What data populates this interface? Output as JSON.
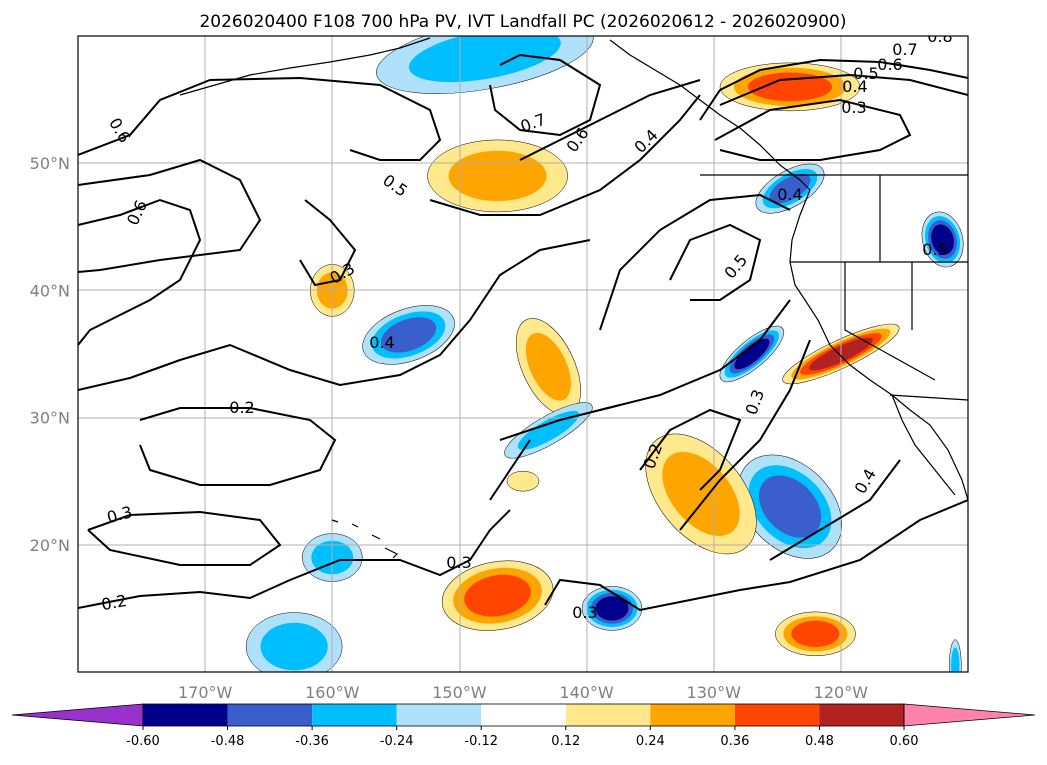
{
  "chart_data": {
    "type": "heatmap",
    "title": "2026020400 F108 700 hPa PV, IVT Landfall PC (2026020612 - 2026020900)",
    "x_ticks": [
      "170°W",
      "160°W",
      "150°W",
      "140°W",
      "130°W",
      "120°W"
    ],
    "y_ticks": [
      "50°N",
      "40°N",
      "30°N",
      "20°N"
    ],
    "x_range_lon": [
      -180,
      -110
    ],
    "y_range_lat": [
      10,
      60
    ],
    "colorbar": {
      "ticks": [
        "-0.60",
        "-0.48",
        "-0.36",
        "-0.24",
        "-0.12",
        "0.12",
        "0.24",
        "0.36",
        "0.48",
        "0.60"
      ],
      "levels": [
        -0.72,
        -0.6,
        -0.48,
        -0.36,
        -0.24,
        -0.12,
        0.12,
        0.24,
        0.36,
        0.48,
        0.6,
        0.72
      ],
      "colors": [
        "#9932cc",
        "#00008b",
        "#3a5fcd",
        "#00bfff",
        "#afe1fa",
        "#ffffff",
        "#ffe98c",
        "#ffa500",
        "#ff4500",
        "#b22222",
        "#ff82ab"
      ],
      "extend": "both"
    },
    "shaded_features": [
      {
        "lon": -148,
        "lat": 58.5,
        "value": -0.3
      },
      {
        "lon": -147,
        "lat": 49,
        "value": 0.26
      },
      {
        "lon": -143,
        "lat": 34,
        "value": 0.3
      },
      {
        "lon": -154,
        "lat": 36.5,
        "value": -0.4
      },
      {
        "lon": -160,
        "lat": 40,
        "value": 0.26
      },
      {
        "lon": -143,
        "lat": 29,
        "value": -0.3
      },
      {
        "lon": -127,
        "lat": 35,
        "value": -0.5
      },
      {
        "lon": -120,
        "lat": 35,
        "value": 0.55
      },
      {
        "lon": -124,
        "lat": 23,
        "value": -0.4
      },
      {
        "lon": -131,
        "lat": 24,
        "value": 0.35
      },
      {
        "lon": -147,
        "lat": 16,
        "value": 0.38
      },
      {
        "lon": -138,
        "lat": 15,
        "value": -0.5
      },
      {
        "lon": -122,
        "lat": 13,
        "value": 0.4
      },
      {
        "lon": -163,
        "lat": 12,
        "value": -0.3
      },
      {
        "lon": -160,
        "lat": 19,
        "value": -0.3
      },
      {
        "lon": -124,
        "lat": 56,
        "value": 0.45
      },
      {
        "lon": -124,
        "lat": 48,
        "value": -0.45
      },
      {
        "lon": -112,
        "lat": 44,
        "value": -0.5
      },
      {
        "lon": -145,
        "lat": 25,
        "value": 0.2
      },
      {
        "lon": -111,
        "lat": 10.5,
        "value": -0.3
      }
    ],
    "contour_labels": [
      "0.8",
      "0.7",
      "0.6",
      "0.5",
      "0.4",
      "0.3",
      "0.7",
      "0.6",
      "0.4",
      "0.5",
      "0.6",
      "0.6",
      "0.5",
      "0.3",
      "0.4",
      "0.4",
      "0.5",
      "0.3",
      "0.2",
      "0.2",
      "0.4",
      "0.3",
      "0.3",
      "0.3",
      "0.2"
    ]
  }
}
